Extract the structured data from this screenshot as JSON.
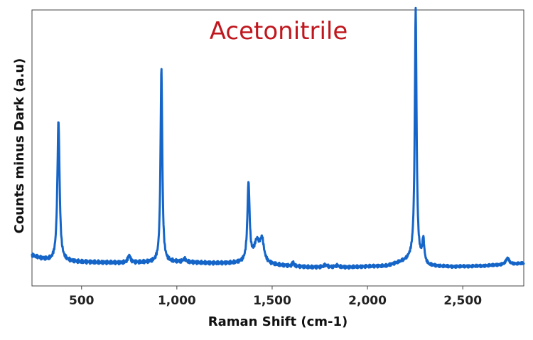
{
  "chart_data": {
    "type": "line",
    "title": "",
    "annotation": "Acetonitrile",
    "xlabel": "Raman Shift (cm-1)",
    "ylabel": "Counts minus Dark (a.u)",
    "xlim": [
      240,
      2820
    ],
    "ylim": [
      0,
      1
    ],
    "x_ticks": [
      500,
      1000,
      1500,
      2000,
      2500
    ],
    "x_tick_labels": [
      "500",
      "1,000",
      "1,500",
      "2,000",
      "2,500"
    ],
    "grid": false,
    "legend": "none",
    "colors": {
      "line": "#1565C8",
      "annotation": "#C0171E",
      "frame": "#444444",
      "text": "#222222"
    },
    "series": [
      {
        "baseline": [
          [
            240,
            0.1
          ],
          [
            290,
            0.088
          ],
          [
            340,
            0.08
          ],
          [
            500,
            0.075
          ],
          [
            700,
            0.072
          ],
          [
            1000,
            0.075
          ],
          [
            1200,
            0.07
          ],
          [
            1340,
            0.07
          ],
          [
            1500,
            0.063
          ],
          [
            1700,
            0.055
          ],
          [
            1900,
            0.055
          ],
          [
            2000,
            0.058
          ],
          [
            2100,
            0.06
          ],
          [
            2200,
            0.08
          ],
          [
            2240,
            0.095
          ],
          [
            2320,
            0.06
          ],
          [
            2450,
            0.057
          ],
          [
            2600,
            0.06
          ],
          [
            2820,
            0.07
          ]
        ],
        "peaks": [
          {
            "x": 379,
            "height": 0.535,
            "width": 7
          },
          {
            "x": 750,
            "height": 0.028,
            "width": 8
          },
          {
            "x": 919,
            "height": 0.74,
            "width": 5.5
          },
          {
            "x": 1040,
            "height": 0.012,
            "width": 9
          },
          {
            "x": 1376,
            "height": 0.3,
            "width": 7
          },
          {
            "x": 1420,
            "height": 0.08,
            "width": 18
          },
          {
            "x": 1447,
            "height": 0.08,
            "width": 12
          },
          {
            "x": 1610,
            "height": 0.018,
            "width": 4
          },
          {
            "x": 1780,
            "height": 0.008,
            "width": 12
          },
          {
            "x": 1840,
            "height": 0.006,
            "width": 12
          },
          {
            "x": 2253,
            "height": 0.95,
            "width": 5.5
          },
          {
            "x": 2293,
            "height": 0.085,
            "width": 6
          },
          {
            "x": 2735,
            "height": 0.024,
            "width": 10
          }
        ]
      }
    ]
  }
}
